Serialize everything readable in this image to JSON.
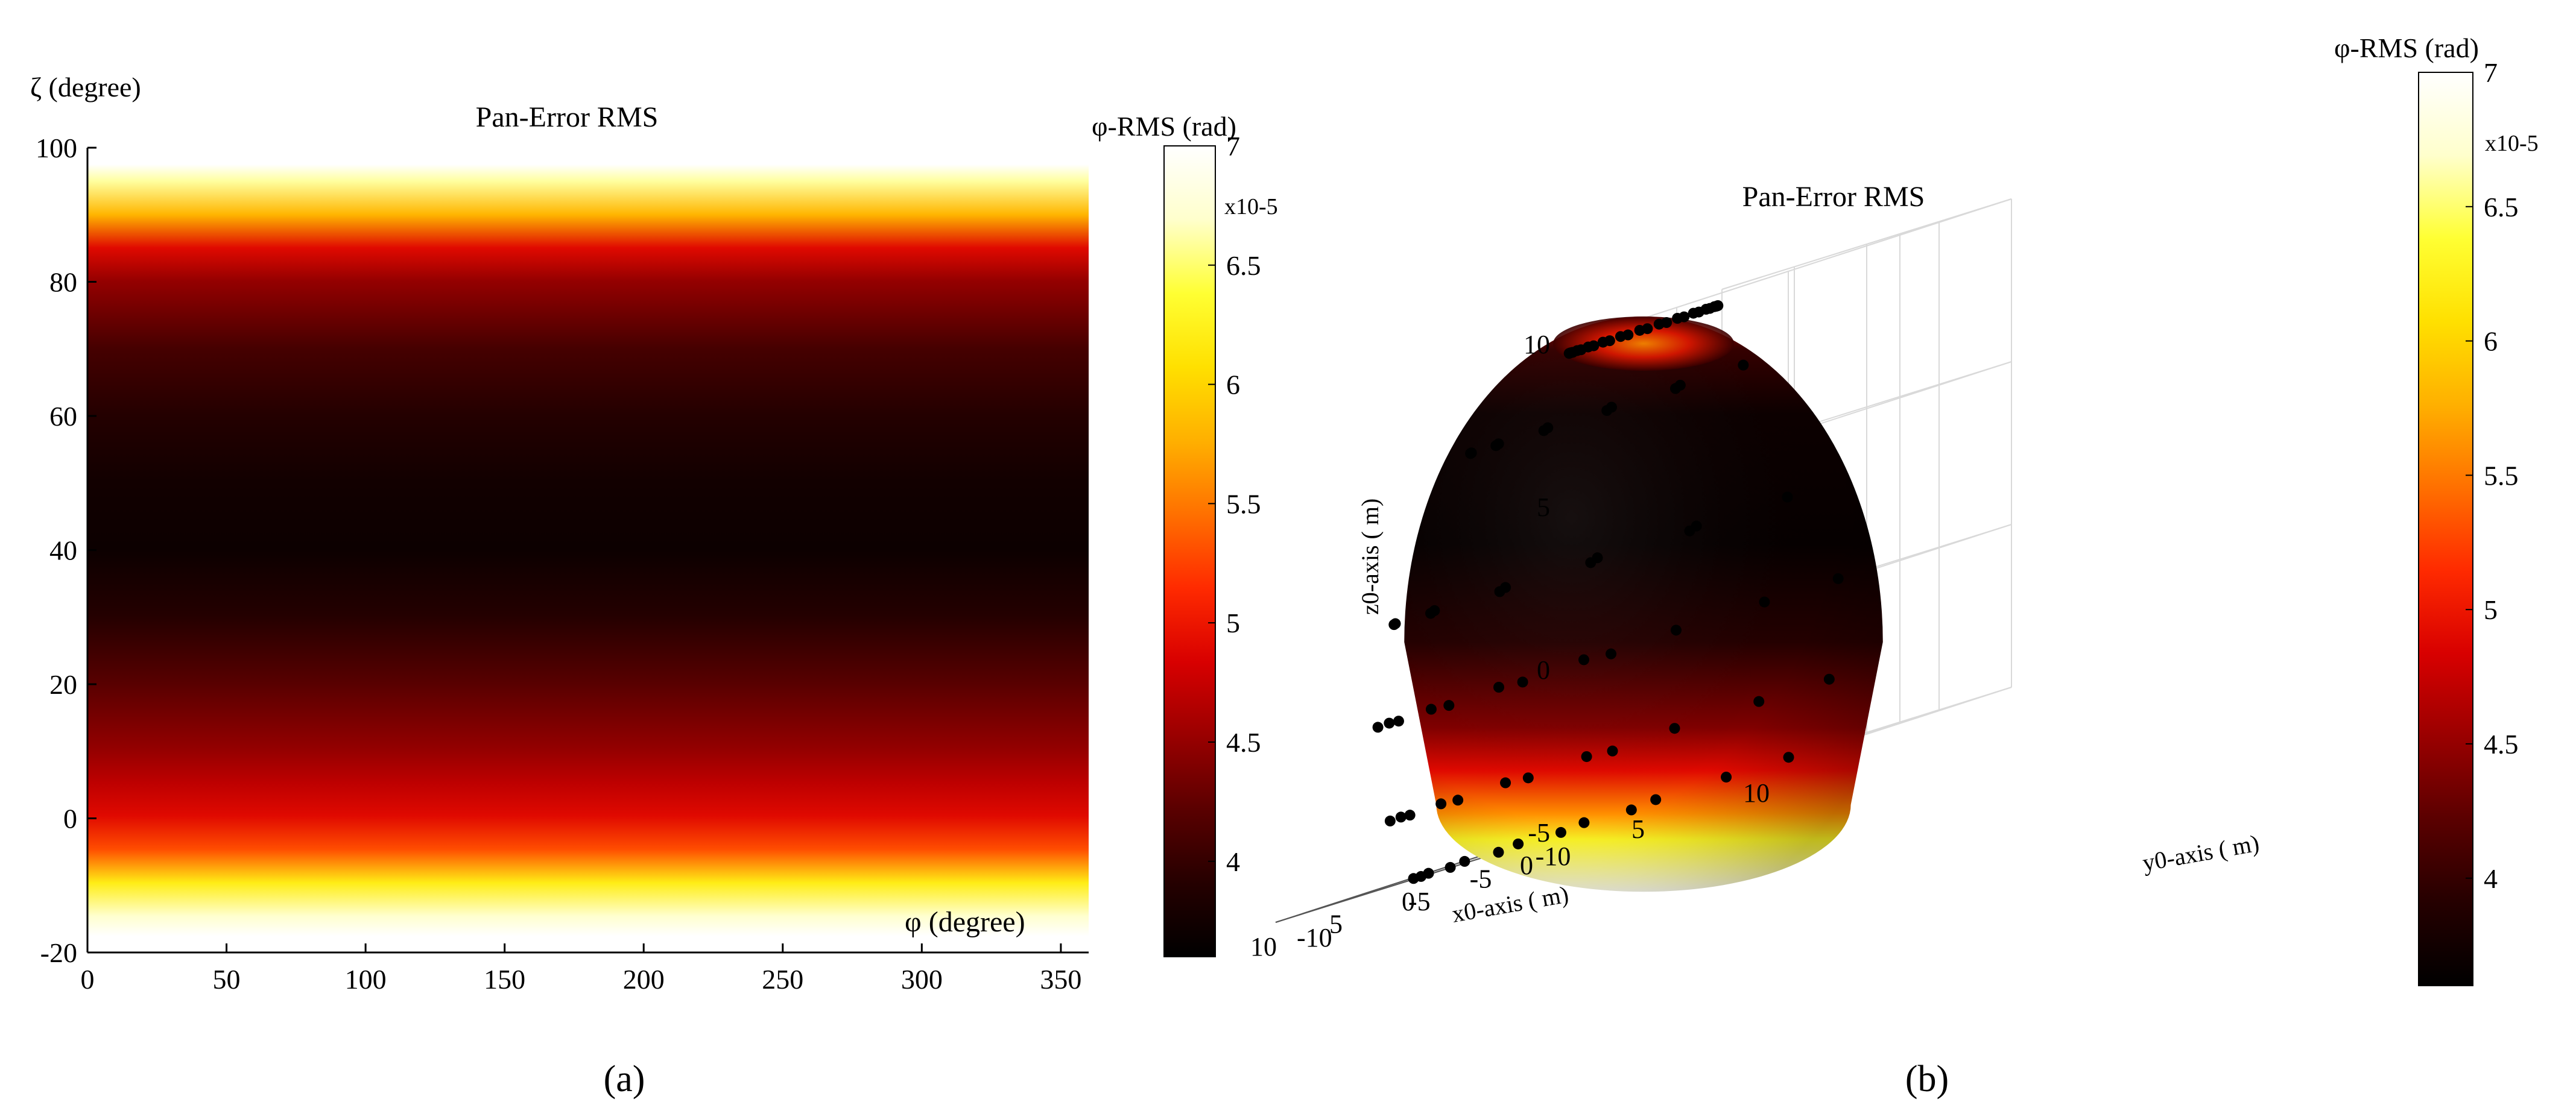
{
  "colors": {
    "hot_stops": [
      "#000000",
      "#250000",
      "#5a0000",
      "#9a0000",
      "#d80000",
      "#ff2a00",
      "#ff7000",
      "#ffb000",
      "#ffe000",
      "#ffff33",
      "#ffffcc",
      "#ffffff"
    ],
    "axis": "#000000",
    "grid3d": "#d9d9d9",
    "marker": "#000000"
  },
  "captions": {
    "a": "(a)",
    "b": "(b)"
  },
  "chart_data": [
    {
      "panel": "a",
      "type": "heatmap",
      "title": "Pan-Error RMS",
      "xlabel": "φ (degree)",
      "ylabel": "ζ (degree)",
      "xlim": [
        0,
        360
      ],
      "ylim": [
        -20,
        100
      ],
      "xticks": [
        0,
        50,
        100,
        150,
        200,
        250,
        300,
        350
      ],
      "yticks": [
        -20,
        0,
        20,
        40,
        60,
        80,
        100
      ],
      "value_profile_over_y": {
        "y": [
          -15,
          -10,
          -5,
          0,
          5,
          10,
          20,
          30,
          40,
          50,
          60,
          70,
          80,
          85,
          90,
          95
        ],
        "value": [
          6.7,
          6.2,
          5.3,
          4.9,
          4.7,
          4.5,
          4.2,
          3.9,
          3.7,
          3.75,
          3.9,
          4.1,
          4.5,
          4.9,
          5.8,
          6.6
        ]
      },
      "colorbar": {
        "label": "φ-RMS (rad)",
        "scale_note": "x10-5",
        "range": [
          3.6,
          7.0
        ],
        "ticks": [
          4,
          4.5,
          5,
          5.5,
          6,
          6.5,
          7
        ]
      }
    },
    {
      "panel": "b",
      "type": "surface3d",
      "title": "Pan-Error RMS",
      "xlabel": "x0-axis ( m)",
      "ylabel": "y0-axis ( m)",
      "zlabel": "z0-axis ( m)",
      "xlim": [
        -10,
        10
      ],
      "ylim": [
        -10,
        10
      ],
      "zlim": [
        -5,
        10
      ],
      "xticks": [
        -10,
        -5,
        0,
        5,
        10
      ],
      "yticks": [
        -10,
        -5,
        0,
        5,
        10
      ],
      "zticks": [
        -5,
        0,
        5,
        10
      ],
      "sphere_radius": 10,
      "colorbar": {
        "label": "φ-RMS (rad)",
        "scale_note": "x10-5",
        "range": [
          3.6,
          7.0
        ],
        "ticks": [
          4,
          4.5,
          5,
          5.5,
          6,
          6.5,
          7
        ]
      }
    }
  ]
}
